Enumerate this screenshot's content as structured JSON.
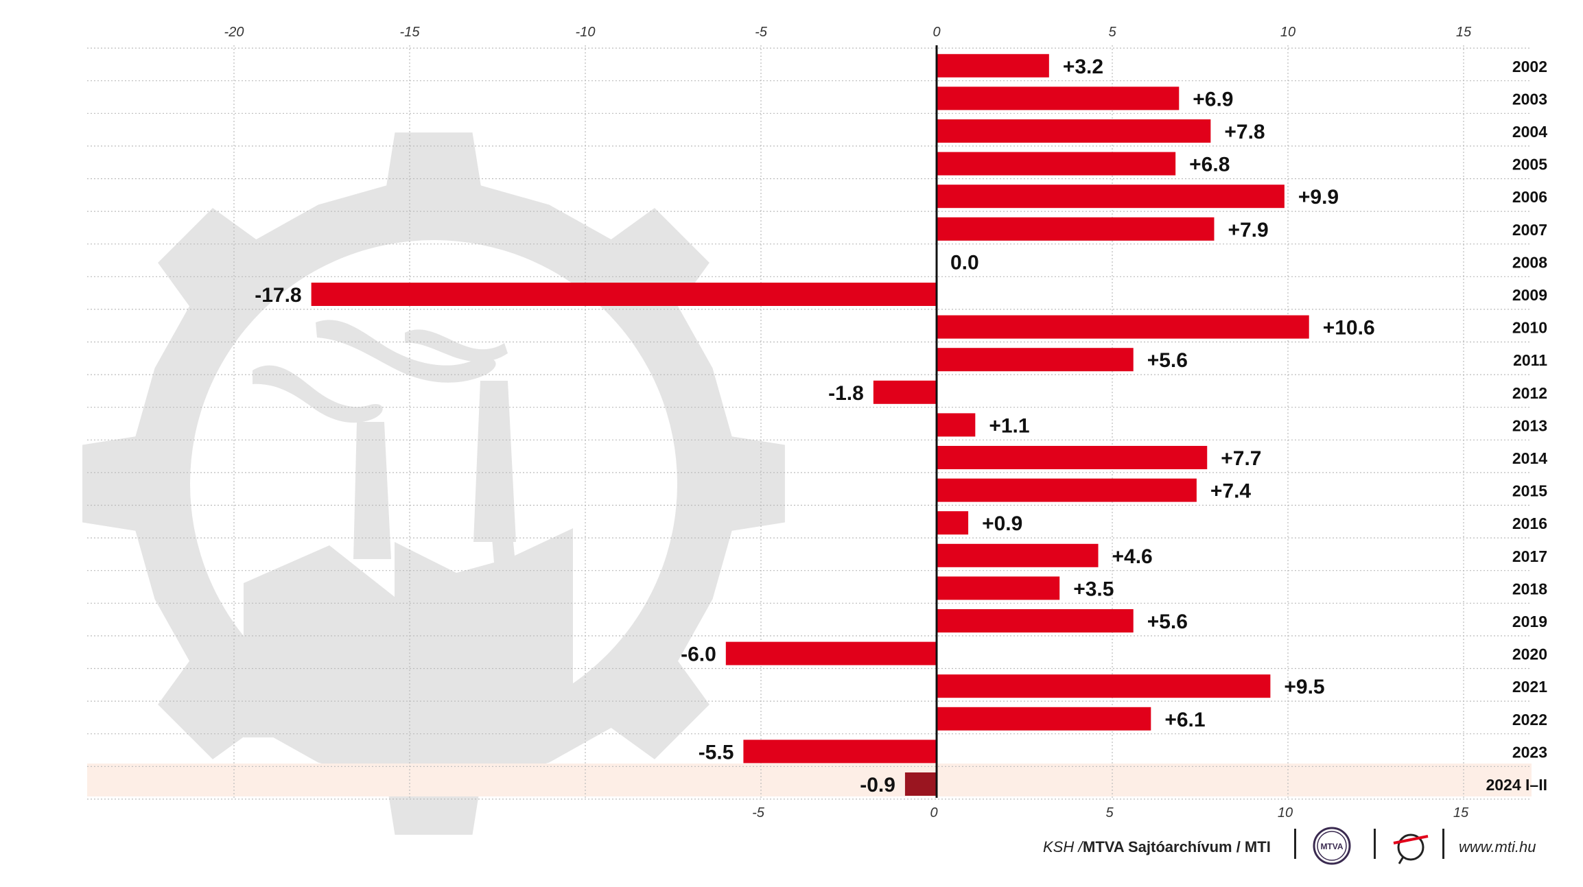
{
  "chart_data": {
    "type": "bar",
    "orientation": "horizontal",
    "categories": [
      "2002",
      "2003",
      "2004",
      "2005",
      "2006",
      "2007",
      "2008",
      "2009",
      "2010",
      "2011",
      "2012",
      "2013",
      "2014",
      "2015",
      "2016",
      "2017",
      "2018",
      "2019",
      "2020",
      "2021",
      "2022",
      "2023",
      "2024 I–II"
    ],
    "values": [
      3.2,
      6.9,
      7.8,
      6.8,
      9.9,
      7.9,
      0.0,
      -17.8,
      10.6,
      5.6,
      -1.8,
      1.1,
      7.7,
      7.4,
      0.9,
      4.6,
      3.5,
      5.6,
      -6.0,
      9.5,
      6.1,
      -5.5,
      -0.9
    ],
    "labels": [
      "+3.2",
      "+6.9",
      "+7.8",
      "+6.8",
      "+9.9",
      "+7.9",
      "0.0",
      "-17.8",
      "+10.6",
      "+5.6",
      "-1.8",
      "+1.1",
      "+7.7",
      "+7.4",
      "+0.9",
      "+4.6",
      "+3.5",
      "+5.6",
      "-6.0",
      "+9.5",
      "+6.1",
      "-5.5",
      "-0.9"
    ],
    "xlim": [
      -24.4,
      17.3
    ],
    "top_ticks": [
      -20,
      -15,
      -10,
      -5,
      0,
      5,
      10,
      15
    ],
    "bottom_ticks": [
      -5,
      0,
      5,
      10,
      15
    ],
    "highlight_category": "2024 I–II",
    "colors": {
      "bar": "#e1001a",
      "highlight_bar": "#9a1520",
      "highlight_band": "#fdeee6",
      "grid": "#bbbbbb",
      "axis": "#111111",
      "watermark": "#e4e4e4"
    }
  },
  "footer": {
    "source_italic": "KSH / ",
    "source_bold": "MTVA Sajtóarchívum / MTI",
    "logo_mtva_text": "MTVA",
    "website": "www.mti.hu"
  }
}
